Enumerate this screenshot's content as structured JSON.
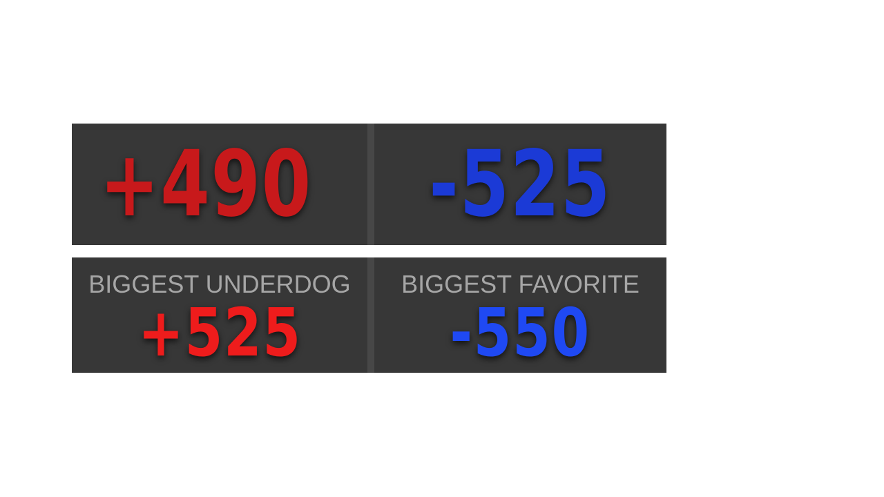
{
  "top_row": {
    "underdog_odds": "+490",
    "favorite_odds": "-525"
  },
  "bottom_row": {
    "underdog_label": "BIGGEST UNDERDOG",
    "underdog_odds": "+525",
    "favorite_label": "BIGGEST FAVORITE",
    "favorite_odds": "-550"
  },
  "colors": {
    "underdog_top": "#c8191b",
    "favorite_top": "#1b3ad6",
    "underdog_bottom": "#ee1c1c",
    "favorite_bottom": "#1f49f3",
    "panel_bg": "#373737",
    "divider": "#474747",
    "label": "#a6a6a6"
  }
}
